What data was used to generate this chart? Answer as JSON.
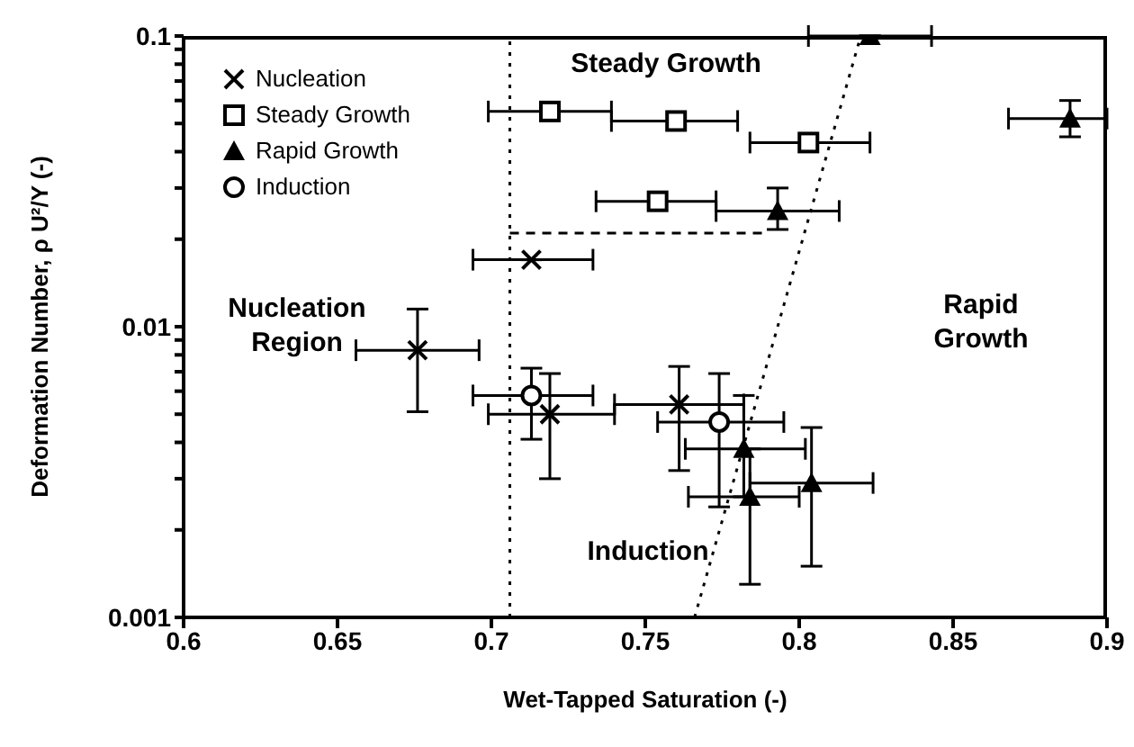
{
  "chart_data": {
    "type": "scatter",
    "xlabel": "Wet-Tapped Saturation (-)",
    "ylabel": "Deformation Number, ρ U²/Y (-)",
    "log": "y",
    "grid": false,
    "legend": "top left",
    "xlim": [
      0.6,
      0.9
    ],
    "xticks": [
      0.6,
      0.65,
      0.7,
      0.75,
      0.8,
      0.85,
      0.9
    ],
    "ylim": [
      0.001,
      0.1
    ],
    "yticks": [
      0.001,
      {
        "value": 0.002,
        "label": null
      },
      {
        "value": 0.003,
        "label": null
      },
      {
        "value": 0.004,
        "label": null
      },
      {
        "value": 0.005,
        "label": null
      },
      {
        "value": 0.006,
        "label": null
      },
      {
        "value": 0.007,
        "label": null
      },
      {
        "value": 0.008,
        "label": null
      },
      {
        "value": 0.009,
        "label": null
      },
      0.01,
      {
        "value": 0.02,
        "label": null
      },
      {
        "value": 0.03,
        "label": null
      },
      {
        "value": 0.04,
        "label": null
      },
      {
        "value": 0.05,
        "label": null
      },
      {
        "value": 0.06,
        "label": null
      },
      {
        "value": 0.07,
        "label": null
      },
      {
        "value": 0.08,
        "label": null
      },
      {
        "value": 0.09,
        "label": null
      },
      0.1
    ],
    "series": [
      {
        "name": "Nucleation",
        "color": "#000000",
        "marker": "cross",
        "x": [
          0.676,
          0.719,
          0.761,
          0.713
        ],
        "values": [
          0.0083,
          0.005,
          0.0054,
          0.017
        ],
        "errors": [
          [
            0.0051,
            0.0115
          ],
          [
            0.003,
            0.0069
          ],
          [
            0.0032,
            0.0073
          ],
          null
        ],
        "xerrors": [
          [
            0.656,
            0.696
          ],
          [
            0.699,
            0.74
          ],
          [
            0.74,
            0.782
          ],
          [
            0.694,
            0.733
          ]
        ]
      },
      {
        "name": "Steady Growth",
        "color": "#000000",
        "marker": "square",
        "x": [
          0.719,
          0.76,
          0.803,
          0.754
        ],
        "values": [
          0.055,
          0.051,
          0.043,
          0.027
        ],
        "xerrors": [
          [
            0.699,
            0.739
          ],
          [
            0.739,
            0.78
          ],
          [
            0.784,
            0.823
          ],
          [
            0.734,
            0.773
          ]
        ]
      },
      {
        "name": "Rapid Growth",
        "color": "#000000",
        "marker": "triangle",
        "x": [
          0.823,
          0.888,
          0.793,
          0.782,
          0.784,
          0.804
        ],
        "values": [
          0.1,
          0.052,
          0.025,
          0.0038,
          0.0026,
          0.0029
        ],
        "errors": [
          null,
          [
            0.045,
            0.06
          ],
          [
            0.0216,
            0.03
          ],
          [
            0.0026,
            0.0058
          ],
          [
            0.0013,
            0.0038
          ],
          [
            0.0015,
            0.0045
          ]
        ],
        "xerrors": [
          [
            0.803,
            0.843
          ],
          [
            0.868,
            0.9
          ],
          [
            0.773,
            0.813
          ],
          [
            0.763,
            0.802
          ],
          [
            0.764,
            0.8
          ],
          [
            0.784,
            0.824
          ]
        ]
      },
      {
        "name": "Induction",
        "color": "#000000",
        "marker": "circle",
        "x": [
          0.713,
          0.774
        ],
        "values": [
          0.0058,
          0.0047
        ],
        "errors": [
          [
            0.0041,
            0.0072
          ],
          [
            0.0024,
            0.0069
          ]
        ],
        "xerrors": [
          [
            0.694,
            0.733
          ],
          [
            0.754,
            0.795
          ]
        ]
      },
      {
        "type": "line",
        "color": "#000000",
        "line_style": "dotted",
        "x": [
          0.766,
          0.82
        ],
        "values": [
          0.001,
          0.1
        ]
      },
      {
        "type": "line",
        "color": "#000000",
        "line_style": "dashed",
        "x": [
          0.706,
          0.79
        ],
        "values": [
          0.021,
          0.021
        ]
      }
    ],
    "ref_lines": [
      {
        "axis": "x",
        "value": 0.706,
        "color": "#000000",
        "line_style": "dotted"
      }
    ],
    "annotations": [
      "Steady Growth",
      "Rapid Growth",
      "Nucleation Region",
      "Induction"
    ]
  }
}
